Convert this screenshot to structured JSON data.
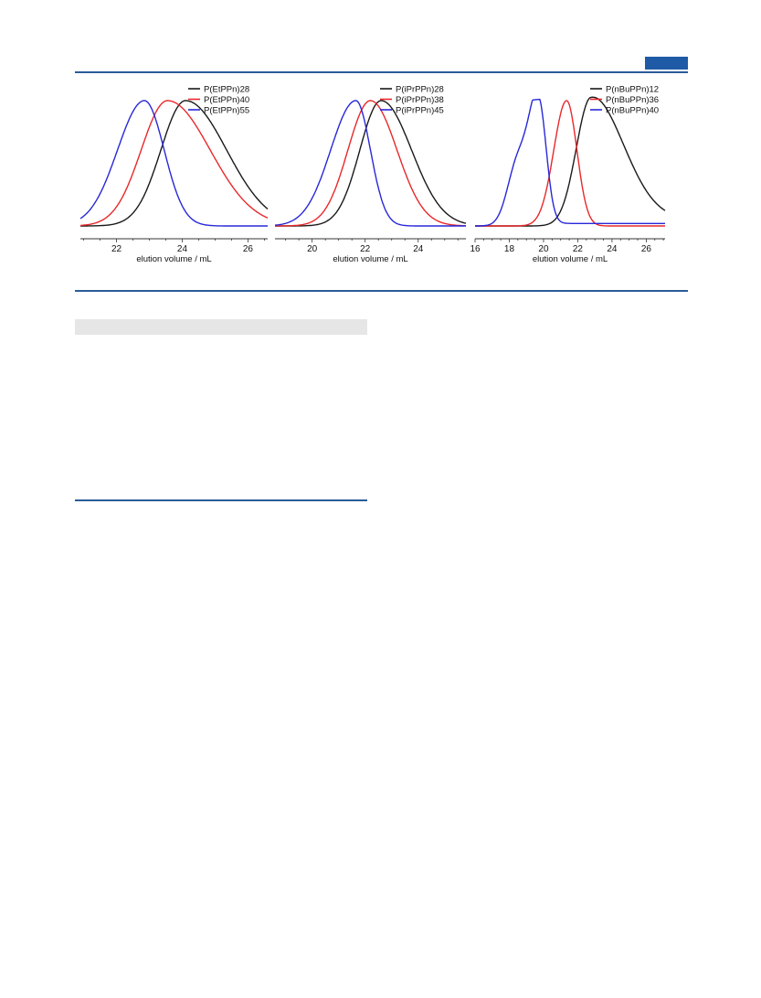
{
  "page": {
    "accent_color": "#1f5aa6",
    "rule_color": "#2a5c9a",
    "header_block": "blue-rectangle"
  },
  "chart_data": [
    {
      "type": "line",
      "title": "",
      "xlabel": "elution volume / mL",
      "ylabel": "",
      "xlim": [
        20.9,
        26.6
      ],
      "ylim": [
        0,
        1.05
      ],
      "xticks": [
        22,
        24,
        26
      ],
      "legend": "top-right",
      "grid": false,
      "series": [
        {
          "name": "P(EtPPn)28",
          "color": "#1a1a1a",
          "center": 24.1,
          "sigma": 0.75,
          "tail": 1.25,
          "baseline": 0.0
        },
        {
          "name": "P(EtPPn)40",
          "color": "#e8282a",
          "center": 23.55,
          "sigma": 0.8,
          "tail": 1.3,
          "baseline": 0.0
        },
        {
          "name": "P(EtPPn)55",
          "color": "#2828d8",
          "center": 22.85,
          "sigma": 0.82,
          "tail": 0.6,
          "baseline": 0.0
        }
      ]
    },
    {
      "type": "line",
      "title": "",
      "xlabel": "elution volume / mL",
      "ylabel": "",
      "xlim": [
        18.6,
        25.8
      ],
      "ylim": [
        0,
        1.05
      ],
      "xticks": [
        20,
        22,
        24
      ],
      "legend": "top-right",
      "grid": false,
      "series": [
        {
          "name": "P(iPrPPn)28",
          "color": "#1a1a1a",
          "center": 22.6,
          "sigma": 0.8,
          "tail": 1.15,
          "baseline": 0.0
        },
        {
          "name": "P(iPrPPn)38",
          "color": "#e8282a",
          "center": 22.2,
          "sigma": 0.85,
          "tail": 1.0,
          "baseline": 0.0
        },
        {
          "name": "P(iPrPPn)45",
          "color": "#2828d8",
          "center": 21.65,
          "sigma": 0.95,
          "tail": 0.55,
          "baseline": 0.0
        }
      ]
    },
    {
      "type": "line",
      "title": "",
      "xlabel": "elution volume / mL",
      "ylabel": "",
      "xlim": [
        16,
        27.1
      ],
      "ylim": [
        0,
        1.05
      ],
      "xticks": [
        16,
        18,
        20,
        22,
        24,
        26
      ],
      "legend": "top-right",
      "grid": false,
      "series": [
        {
          "name": "P(nBuPPn)12",
          "color": "#1a1a1a",
          "center": 22.75,
          "sigma": 0.85,
          "tail": 1.9,
          "baseline": 0.05
        },
        {
          "name": "P(nBuPPn)36",
          "color": "#e8282a",
          "center": 21.35,
          "sigma": 0.75,
          "tail": 0.6,
          "baseline": 0.0
        },
        {
          "name": "P(nBuPPn)40",
          "color": "#2828d8",
          "center": 19.7,
          "sigma": 0.55,
          "tail": 0.45,
          "baseline": 0.02,
          "shoulder": {
            "center": 18.5,
            "height": 0.5,
            "sigma": 0.6
          }
        }
      ]
    }
  ]
}
